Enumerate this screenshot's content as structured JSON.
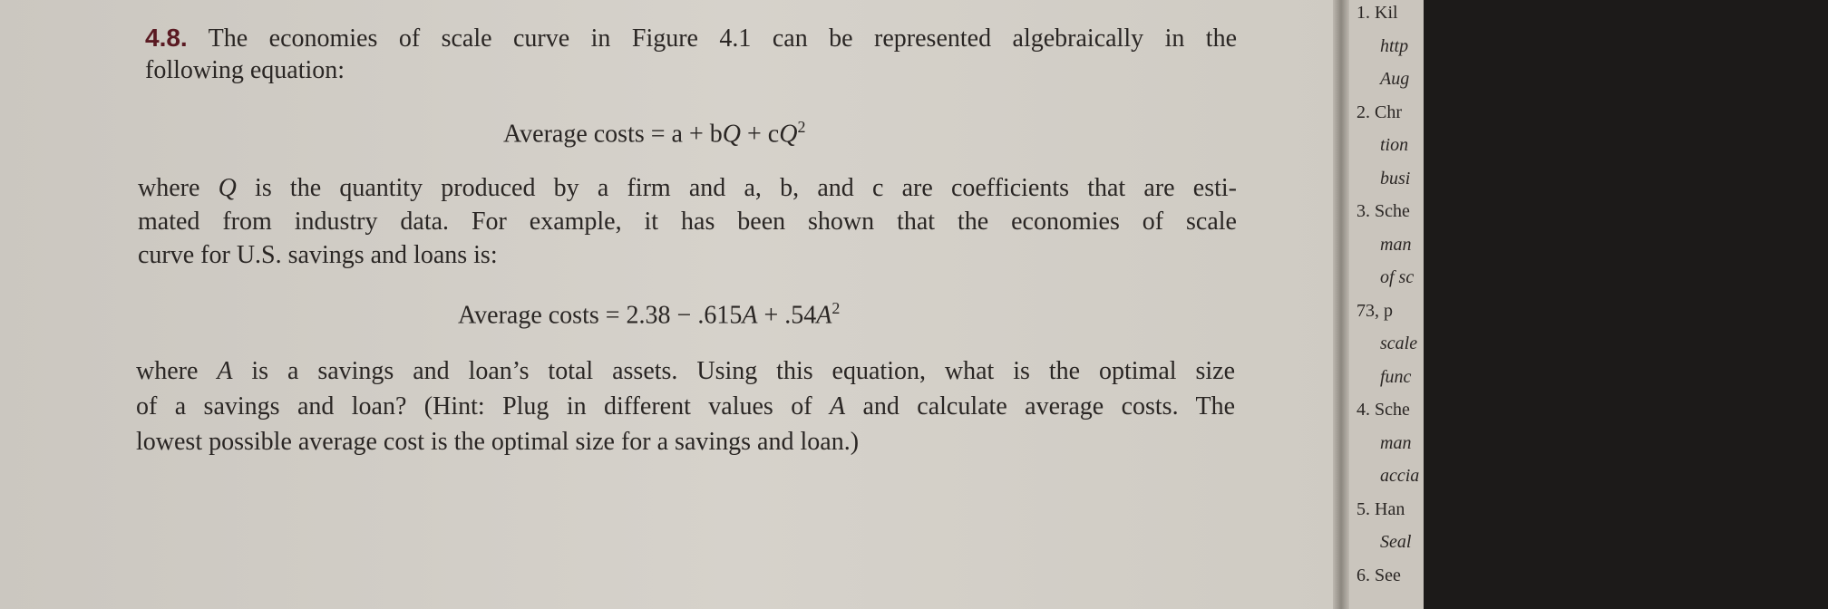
{
  "problem": {
    "number": "4.8.",
    "intro_lines": [
      [
        "The economies of scale curve in Figure 4.1 can be represented algebraically in the"
      ],
      [
        "following equation:"
      ]
    ],
    "equation_1": [
      "Average costs = a + b",
      "Q",
      " + c",
      "Q",
      "2"
    ],
    "body_lines": [
      [
        "where ",
        "Q",
        " is the quantity produced by a firm and a, b, and c are coefficients that are esti-"
      ],
      [
        "mated from industry data. For example, it has been shown that the economies of scale"
      ],
      [
        "curve for U.S. savings and loans is:"
      ]
    ],
    "equation_2": [
      "Average costs = 2.38 − .615",
      "A",
      " + .54",
      "A",
      "2"
    ],
    "closing_lines": [
      [
        "where ",
        "A",
        " is a savings and loan’s total assets. Using this equation, what is the optimal size"
      ],
      [
        "of a savings and loan? (Hint: Plug in different values of ",
        "A",
        " and calculate average costs. The"
      ],
      [
        "lowest possible average cost is the optimal size for a savings and loan.)"
      ]
    ]
  },
  "margin_notes": [
    "1. Kil",
    "http",
    "Aug",
    "2. Chr",
    "tion",
    "busi",
    "3. Sche",
    "man",
    "of sc",
    "73, p",
    "scale",
    "func",
    "4. Sche",
    "man",
    "accia",
    "5. Han",
    "Seal",
    "6. See"
  ]
}
